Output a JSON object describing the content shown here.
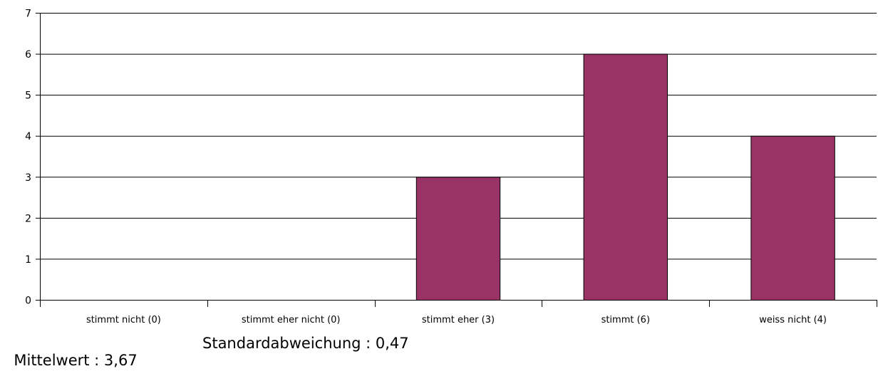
{
  "chart_data": {
    "type": "bar",
    "categories": [
      "stimmt nicht (0)",
      "stimmt eher nicht (0)",
      "stimmt eher (3)",
      "stimmt  (6)",
      "weiss nicht (4)"
    ],
    "values": [
      0,
      0,
      3,
      6,
      4
    ],
    "ylim": [
      0,
      7
    ],
    "yticks": [
      "0",
      "1",
      "2",
      "3",
      "4",
      "5",
      "6",
      "7"
    ],
    "grid": true,
    "bar_color": "#993366"
  },
  "stats": {
    "mean_label": "Mittelwert : 3,67",
    "std_label": "Standardabweichung : 0,47"
  }
}
